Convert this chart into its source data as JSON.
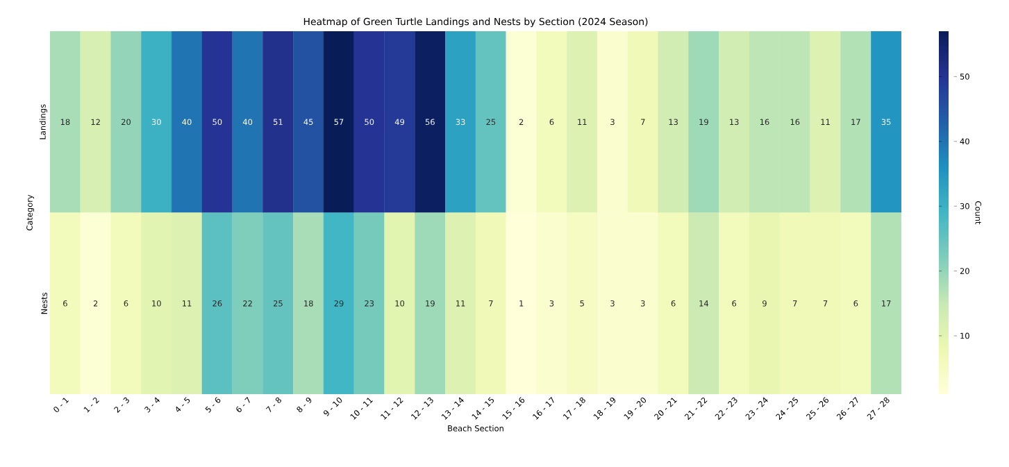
{
  "chart_data": {
    "type": "heatmap",
    "title": "Heatmap of Green Turtle Landings and Nests by Section (2024 Season)",
    "xlabel": "Beach Section",
    "ylabel": "Category",
    "clabel": "Count",
    "categories": [
      "0 - 1",
      "1 - 2",
      "2 - 3",
      "3 - 4",
      "4 - 5",
      "5 - 6",
      "6 - 7",
      "7 - 8",
      "8 - 9",
      "9 - 10",
      "10 - 11",
      "11 - 12",
      "12 - 13",
      "13 - 14",
      "14 - 15",
      "15 - 16",
      "16 - 17",
      "17 - 18",
      "18 - 19",
      "19 - 20",
      "20 - 21",
      "21 - 22",
      "22 - 23",
      "23 - 24",
      "24 - 25",
      "25 - 26",
      "26 - 27",
      "27 - 28"
    ],
    "y_categories": [
      "Landings",
      "Nests"
    ],
    "cells": [
      [
        18,
        12,
        20,
        30,
        40,
        50,
        40,
        51,
        45,
        57,
        50,
        49,
        56,
        33,
        25,
        2,
        6,
        11,
        3,
        7,
        13,
        19,
        13,
        16,
        16,
        11,
        17,
        35
      ],
      [
        6,
        2,
        6,
        10,
        11,
        26,
        22,
        25,
        18,
        29,
        23,
        10,
        19,
        11,
        7,
        1,
        3,
        5,
        3,
        3,
        6,
        14,
        6,
        9,
        7,
        7,
        6,
        17
      ]
    ],
    "clim": [
      1,
      57
    ],
    "cticks": [
      10,
      20,
      30,
      40,
      50
    ],
    "data_labels": true
  }
}
